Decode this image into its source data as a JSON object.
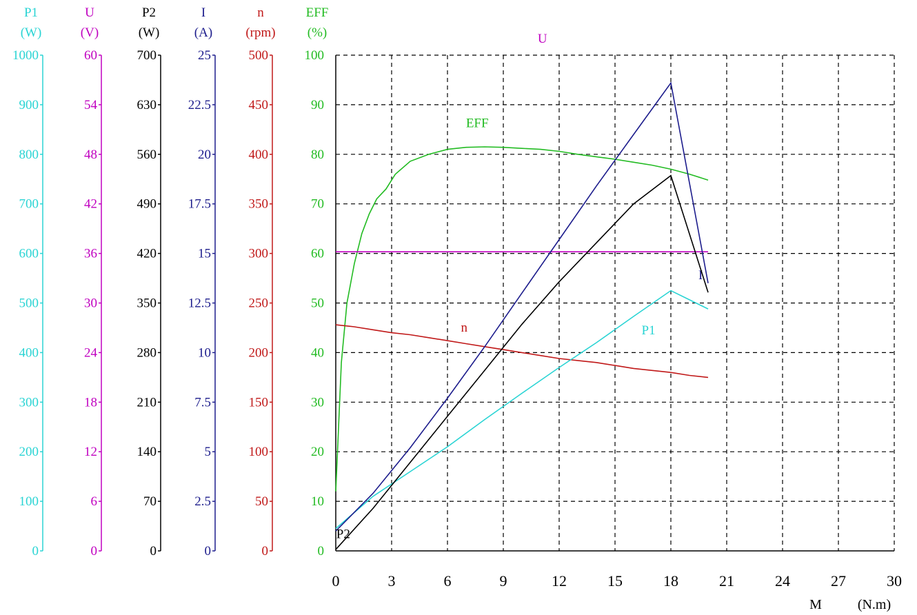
{
  "chart_data": {
    "type": "line",
    "x": {
      "label": "M",
      "unit": "(N.m)",
      "range": [
        0,
        30
      ],
      "ticks": [
        "0",
        "3",
        "6",
        "9",
        "12",
        "15",
        "18",
        "21",
        "24",
        "27",
        "30"
      ],
      "tick_values": [
        0,
        3,
        6,
        9,
        12,
        15,
        18,
        21,
        24,
        27,
        30
      ]
    },
    "grid": true,
    "axes": [
      {
        "id": "P1",
        "name": "P1",
        "unit": "(W)",
        "color": "#2ad4d4",
        "range": [
          0,
          1000
        ],
        "ticks": [
          "0",
          "100",
          "200",
          "300",
          "400",
          "500",
          "600",
          "700",
          "800",
          "900",
          "1000"
        ]
      },
      {
        "id": "U",
        "name": "U",
        "unit": "(V)",
        "color": "#c000c0",
        "range": [
          0,
          60
        ],
        "ticks": [
          "0",
          "6",
          "12",
          "18",
          "24",
          "30",
          "36",
          "42",
          "48",
          "54",
          "60"
        ]
      },
      {
        "id": "P2",
        "name": "P2",
        "unit": "(W)",
        "color": "#000000",
        "range": [
          0,
          700
        ],
        "ticks": [
          "0",
          "70",
          "140",
          "210",
          "280",
          "350",
          "420",
          "490",
          "560",
          "630",
          "700"
        ]
      },
      {
        "id": "I",
        "name": "I",
        "unit": "(A)",
        "color": "#1c1c8c",
        "range": [
          0,
          25
        ],
        "ticks": [
          "0",
          "2.5",
          "5",
          "7.5",
          "10",
          "12.5",
          "15",
          "17.5",
          "20",
          "22.5",
          "25"
        ]
      },
      {
        "id": "n",
        "name": "n",
        "unit": "(rpm)",
        "color": "#c01818",
        "range": [
          0,
          500
        ],
        "ticks": [
          "0",
          "50",
          "100",
          "150",
          "200",
          "250",
          "300",
          "350",
          "400",
          "450",
          "500"
        ]
      },
      {
        "id": "EFF",
        "name": "EFF",
        "unit": "(%)",
        "color": "#22bb22",
        "range": [
          0,
          100
        ],
        "ticks": [
          "0",
          "10",
          "20",
          "30",
          "40",
          "50",
          "60",
          "70",
          "80",
          "90",
          "100"
        ]
      }
    ],
    "series": [
      {
        "name": "EFF",
        "axis": "EFF",
        "color": "#22bb22",
        "label_at": [
          7.6,
          85.5
        ],
        "x": [
          0,
          0.3,
          0.6,
          1.0,
          1.4,
          1.8,
          2.2,
          2.7,
          3.2,
          4,
          5,
          6,
          7,
          8,
          9,
          10,
          11,
          12,
          13,
          14,
          15,
          16,
          17,
          18,
          19,
          20
        ],
        "y": [
          12,
          38,
          50,
          58,
          64,
          68,
          71,
          73,
          76,
          78.6,
          80,
          81,
          81.4,
          81.5,
          81.4,
          81.2,
          81,
          80.6,
          80,
          79.5,
          79,
          78.4,
          77.8,
          77,
          76,
          74.8
        ]
      },
      {
        "name": "U",
        "axis": "U",
        "color": "#c000c0",
        "label_at": [
          11.1,
          61.5
        ],
        "x": [
          0,
          20
        ],
        "y": [
          36.2,
          36.2
        ]
      },
      {
        "name": "n",
        "axis": "n",
        "color": "#c01818",
        "label_at": [
          6.9,
          221
        ],
        "x": [
          0,
          1,
          2,
          3,
          4,
          5,
          6,
          7,
          8,
          9,
          10,
          11,
          12,
          13,
          14,
          15,
          16,
          17,
          18,
          19,
          20
        ],
        "y": [
          228,
          226,
          223,
          220,
          218,
          215,
          212,
          209,
          206,
          203,
          200,
          197,
          194,
          192,
          190,
          187,
          184,
          182,
          180,
          177,
          175
        ]
      },
      {
        "name": "P1",
        "axis": "P1",
        "color": "#2ad4d4",
        "label_at": [
          16.8,
          437
        ],
        "x": [
          0,
          2,
          4,
          6,
          8,
          10,
          12,
          14,
          16,
          18,
          20
        ],
        "y": [
          45,
          110,
          160,
          210,
          265,
          318,
          370,
          420,
          473,
          525,
          488
        ]
      },
      {
        "name": "I",
        "axis": "I",
        "color": "#1c1c8c",
        "label_at": [
          19.6,
          13.7
        ],
        "x": [
          0,
          2,
          4,
          6,
          8,
          10,
          12,
          14,
          16,
          18,
          20
        ],
        "y": [
          1.0,
          2.9,
          5.2,
          7.7,
          10.3,
          13.0,
          15.7,
          18.4,
          21.0,
          23.6,
          13.5
        ]
      },
      {
        "name": "P2",
        "axis": "P2",
        "color": "#000000",
        "label_at": [
          0.4,
          18
        ],
        "x": [
          0,
          2,
          4,
          6,
          8,
          10,
          12,
          14,
          16,
          18,
          20
        ],
        "y": [
          2,
          60,
          125,
          190,
          255,
          320,
          380,
          435,
          490,
          530,
          365
        ]
      }
    ]
  }
}
